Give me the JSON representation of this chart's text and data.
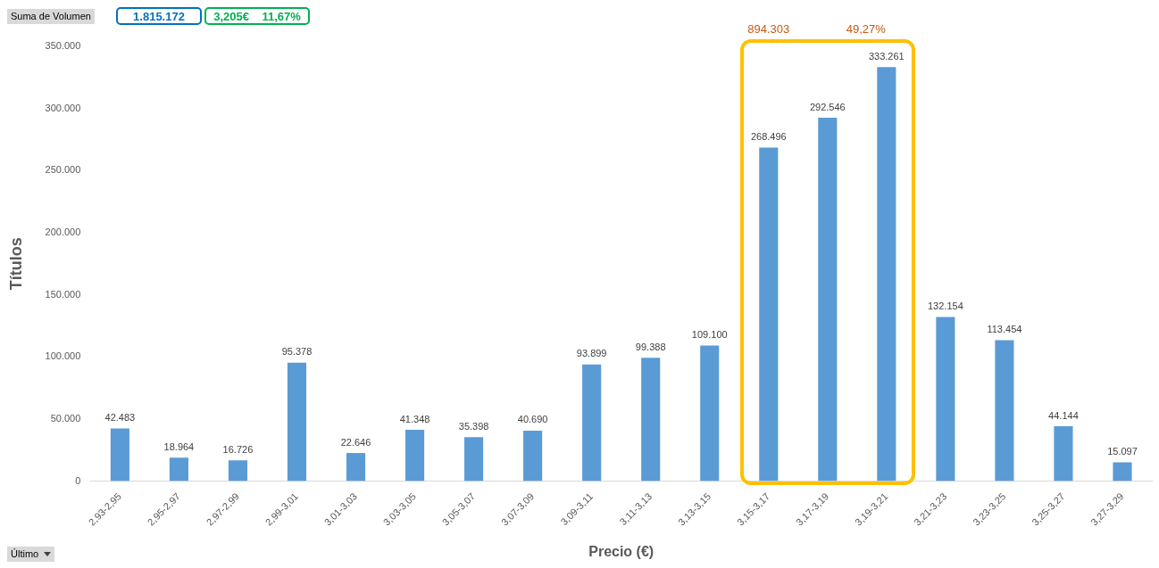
{
  "chart_data": {
    "type": "bar",
    "xlabel": "Precio (€)",
    "ylabel": "Títulos",
    "categories": [
      "2,93-2,95",
      "2,95-2,97",
      "2,97-2,99",
      "2,99-3,01",
      "3,01-3,03",
      "3,03-3,05",
      "3,05-3,07",
      "3,07-3,09",
      "3,09-3,11",
      "3,11-3,13",
      "3,13-3,15",
      "3,15-3,17",
      "3,17-3,19",
      "3,19-3,21",
      "3,21-3,23",
      "3,23-3,25",
      "3,25-3,27",
      "3,27-3,29"
    ],
    "values": [
      42483,
      18964,
      16726,
      95378,
      22646,
      41348,
      35398,
      40690,
      93899,
      99388,
      109100,
      268496,
      292546,
      333261,
      132154,
      113454,
      44144,
      15097
    ],
    "value_labels": [
      "42.483",
      "18.964",
      "16.726",
      "95.378",
      "22.646",
      "41.348",
      "35.398",
      "40.690",
      "93.899",
      "99.388",
      "109.100",
      "268.496",
      "292.546",
      "333.261",
      "132.154",
      "113.454",
      "44.144",
      "15.097"
    ],
    "color": "#5b9bd5",
    "ylim": [
      0,
      350000
    ],
    "yticks": [
      0,
      {
        "value": 50000,
        "label": "50.000"
      },
      {
        "value": 100000,
        "label": "100.000"
      },
      {
        "value": 150000,
        "label": "150.000"
      },
      {
        "value": 200000,
        "label": "200.000"
      },
      {
        "value": 250000,
        "label": "250.000"
      },
      {
        "value": 300000,
        "label": "300.000"
      },
      {
        "value": 350000,
        "label": "350.000"
      }
    ],
    "annotations": [
      "Suma de Volumen",
      "1.815.172",
      "3,205€    11,67%",
      "894.303",
      "49,27%",
      "Último"
    ],
    "grid": false,
    "legend": false
  }
}
